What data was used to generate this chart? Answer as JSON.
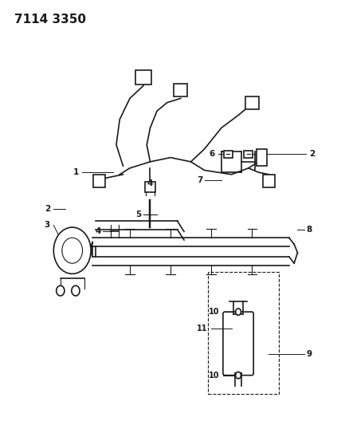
{
  "title": "7114 3350",
  "background_color": "#ffffff",
  "line_color": "#1a1a1a",
  "label_color": "#1a1a1a",
  "figsize": [
    4.28,
    5.33
  ],
  "dpi": 100
}
